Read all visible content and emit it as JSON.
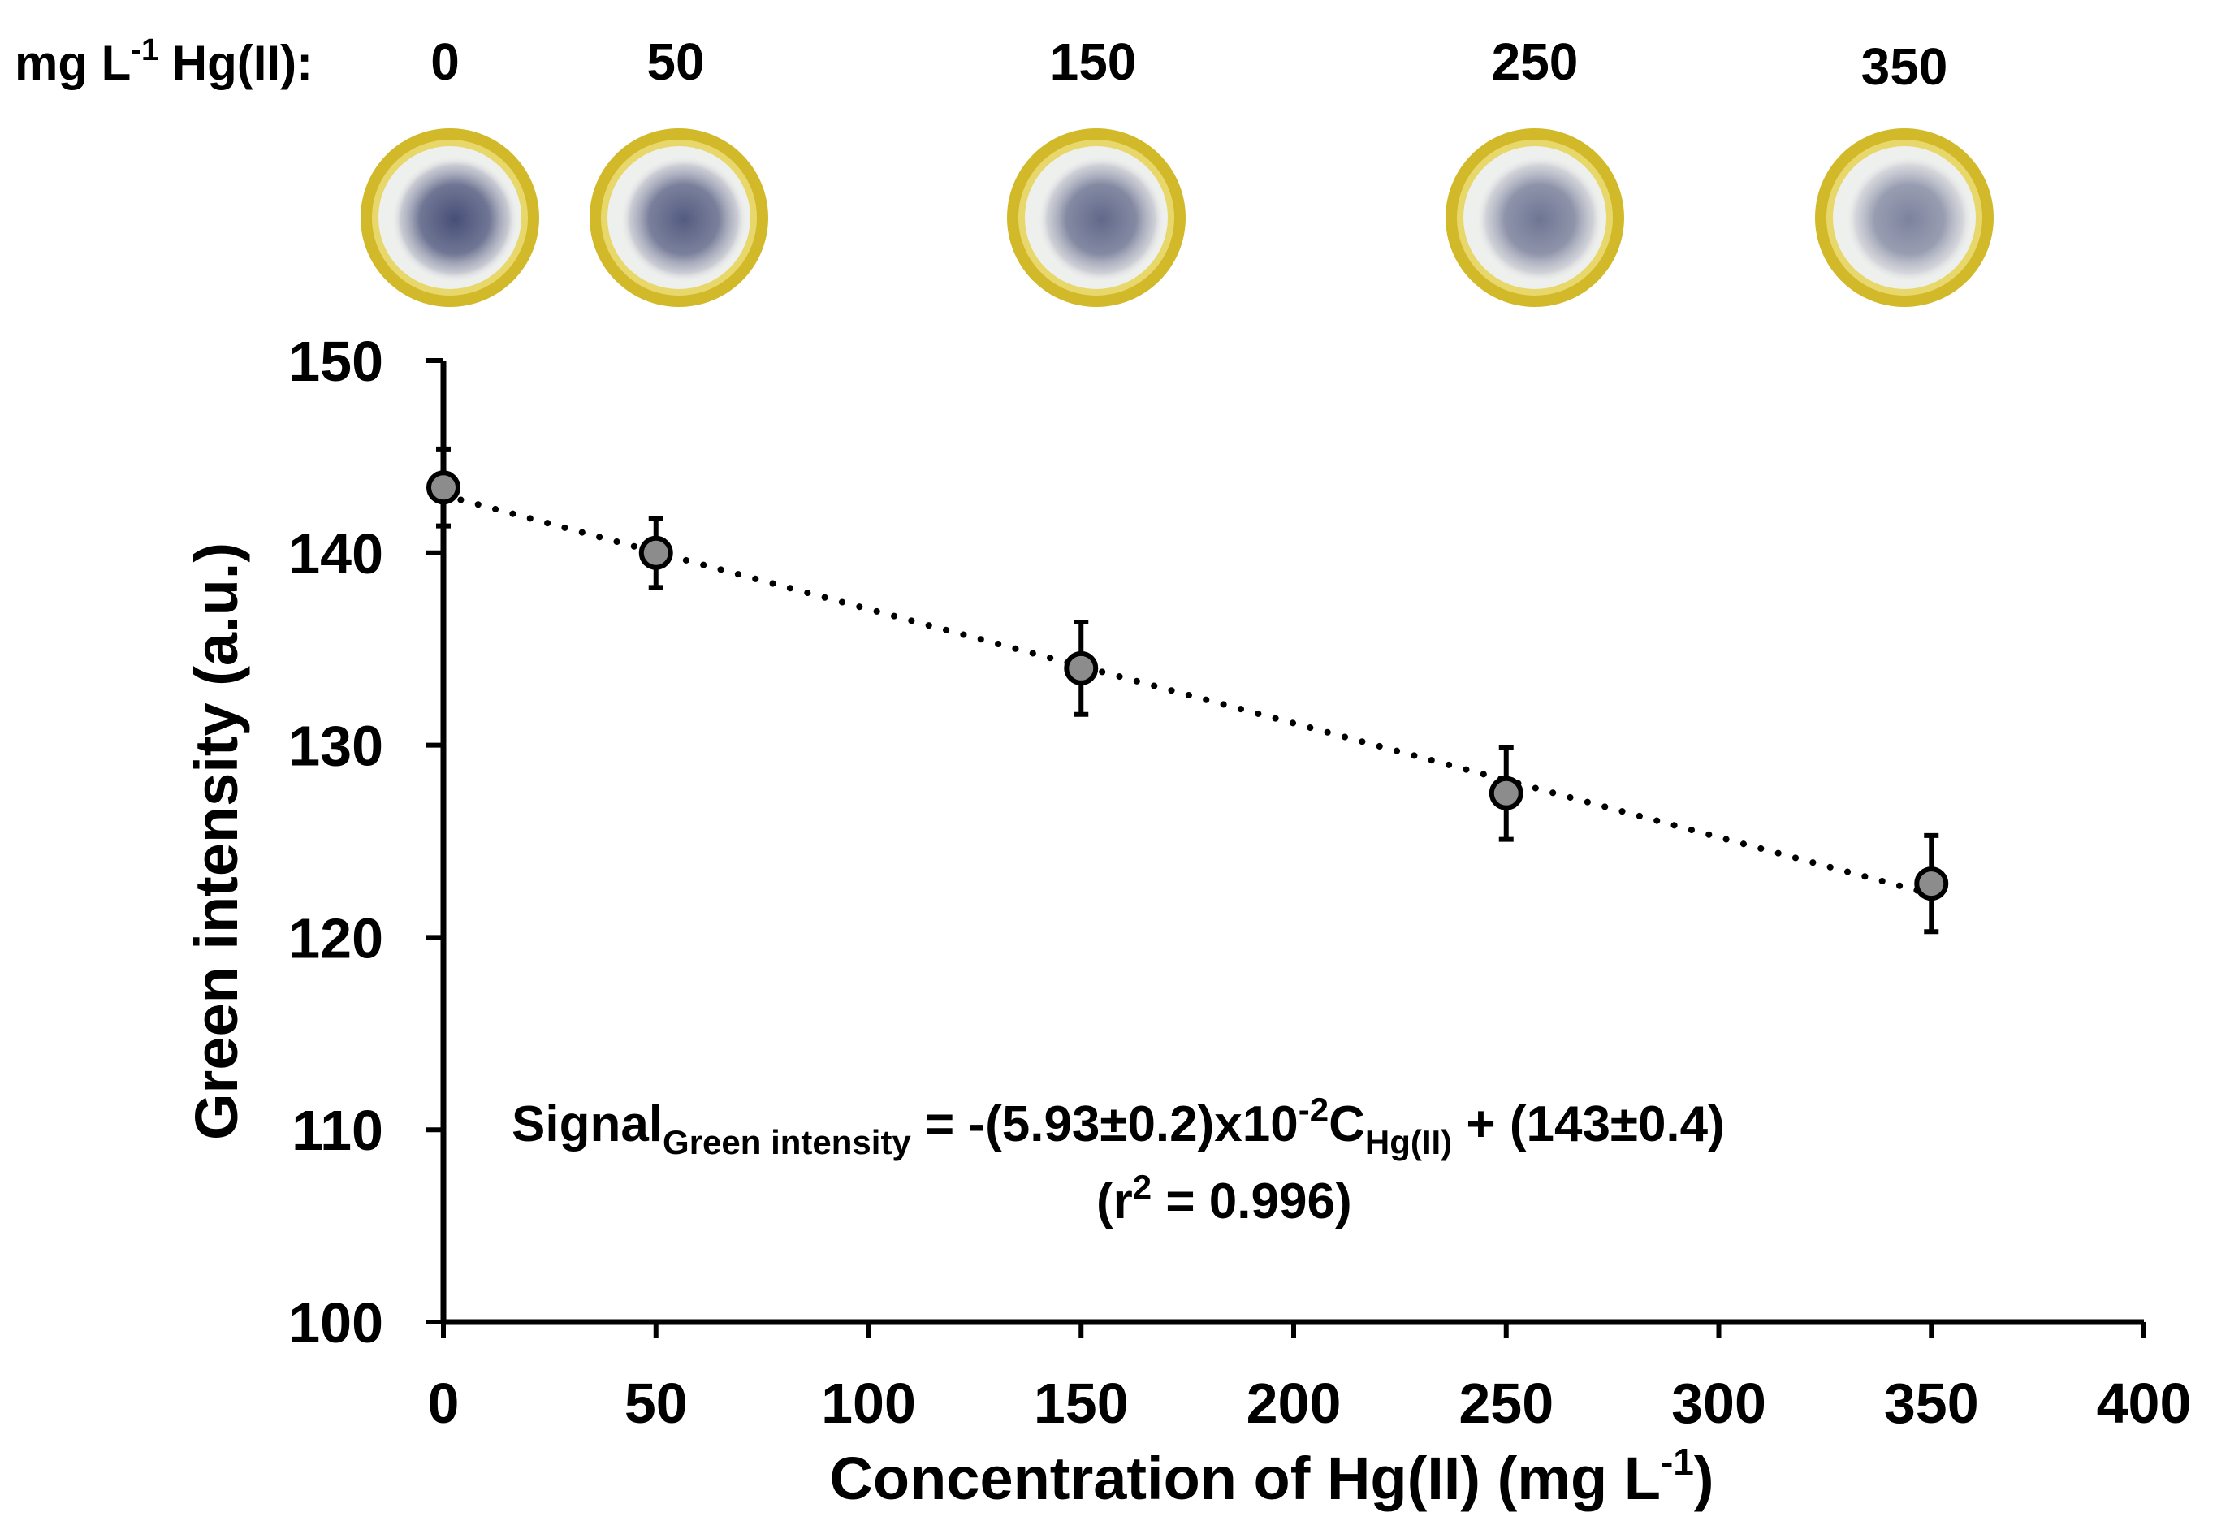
{
  "sample_row": {
    "label_main": "mg L",
    "label_sup": "-1",
    "label_tail": " Hg(II):",
    "concentrations": [
      "0",
      "50",
      "150",
      "250",
      "350"
    ],
    "spot_colors": {
      "ring": "#cfb51e",
      "ring_light": "#e8d76a",
      "inner": "#eef0ee",
      "dye": "#3d4670"
    }
  },
  "equation": {
    "signal": "Signal",
    "signal_sub": "Green intensity",
    "middle": " = -(5.93±0.2)x10",
    "exp": "-2",
    "c": "C",
    "c_sub": "Hg(II)",
    "tail": " + (143±0.4)",
    "r2_open": "(r",
    "r2_sup": "2",
    "r2_tail": " = 0.996)"
  },
  "chart_data": {
    "type": "scatter",
    "title": "",
    "xlabel_main": "Concentration of Hg(II) (mg L",
    "xlabel_sup": "-1",
    "xlabel_close": ")",
    "ylabel": "Green intensity (a.u.)",
    "xlim": [
      0,
      400
    ],
    "ylim": [
      100,
      150
    ],
    "xticks": [
      0,
      50,
      100,
      150,
      200,
      250,
      300,
      350,
      400
    ],
    "yticks": [
      100,
      110,
      120,
      130,
      140,
      150
    ],
    "grid": false,
    "series": [
      {
        "name": "Green intensity",
        "x": [
          0,
          50,
          150,
          250,
          350
        ],
        "y": [
          143.4,
          140.0,
          134.0,
          127.5,
          122.8
        ],
        "error": [
          2.0,
          1.8,
          2.4,
          2.4,
          2.5
        ],
        "marker_color": "#8c8c8c"
      }
    ],
    "trendline": {
      "style": "dotted",
      "slope": -0.0593,
      "intercept": 143.0,
      "x_range": [
        0,
        350
      ]
    }
  }
}
